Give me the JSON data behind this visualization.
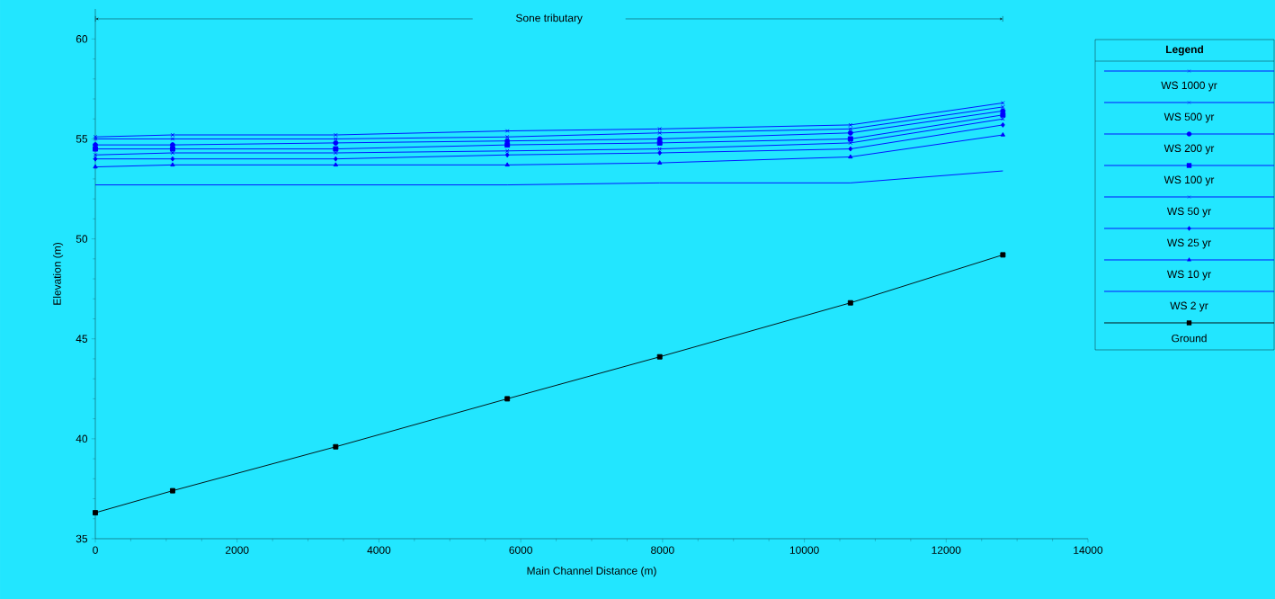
{
  "chart_data": {
    "type": "line",
    "xlabel": "Main Channel Distance (m)",
    "ylabel": "Elevation (m)",
    "legend_title": "Legend",
    "legend": "right",
    "annotations": [
      "Sone tributary"
    ],
    "x": [
      0,
      1090,
      3390,
      5810,
      7960,
      10650,
      12800
    ],
    "xlim": [
      0,
      14000
    ],
    "xticks": [
      0,
      2000,
      4000,
      6000,
      8000,
      10000,
      12000,
      14000
    ],
    "ylim": [
      35,
      61.5
    ],
    "yticks": [
      35,
      40,
      45,
      50,
      55,
      60
    ],
    "series": [
      {
        "name": "WS  1000 yr",
        "color": "#0000ff",
        "marker": "cross",
        "values": [
          55.1,
          55.2,
          55.2,
          55.4,
          55.5,
          55.7,
          56.8
        ]
      },
      {
        "name": "WS  500 yr",
        "color": "#0000ff",
        "marker": "cross",
        "values": [
          55.0,
          55.0,
          55.0,
          55.1,
          55.3,
          55.5,
          56.6
        ]
      },
      {
        "name": "WS  200 yr",
        "color": "#0000ff",
        "marker": "circle",
        "values": [
          54.7,
          54.7,
          54.8,
          54.9,
          55.0,
          55.3,
          56.4
        ]
      },
      {
        "name": "WS  100 yr",
        "color": "#0000ff",
        "marker": "square",
        "values": [
          54.5,
          54.5,
          54.5,
          54.7,
          54.8,
          55.0,
          56.2
        ]
      },
      {
        "name": "WS  50 yr",
        "color": "#0000ff",
        "marker": "cross",
        "values": [
          54.2,
          54.3,
          54.3,
          54.4,
          54.5,
          54.8,
          56.0
        ]
      },
      {
        "name": "WS  25 yr",
        "color": "#0000ff",
        "marker": "diamond",
        "values": [
          54.0,
          54.0,
          54.0,
          54.2,
          54.3,
          54.5,
          55.7
        ]
      },
      {
        "name": "WS  10 yr",
        "color": "#0000ff",
        "marker": "triangle",
        "values": [
          53.6,
          53.7,
          53.7,
          53.7,
          53.8,
          54.1,
          55.2
        ]
      },
      {
        "name": "WS  2 yr",
        "color": "#0000ff",
        "marker": "none",
        "values": [
          52.7,
          52.7,
          52.7,
          52.7,
          52.8,
          52.8,
          53.4
        ]
      },
      {
        "name": "Ground",
        "color": "#000000",
        "marker": "square",
        "values": [
          36.3,
          37.4,
          39.6,
          42.0,
          44.1,
          46.8,
          49.2
        ]
      }
    ]
  }
}
